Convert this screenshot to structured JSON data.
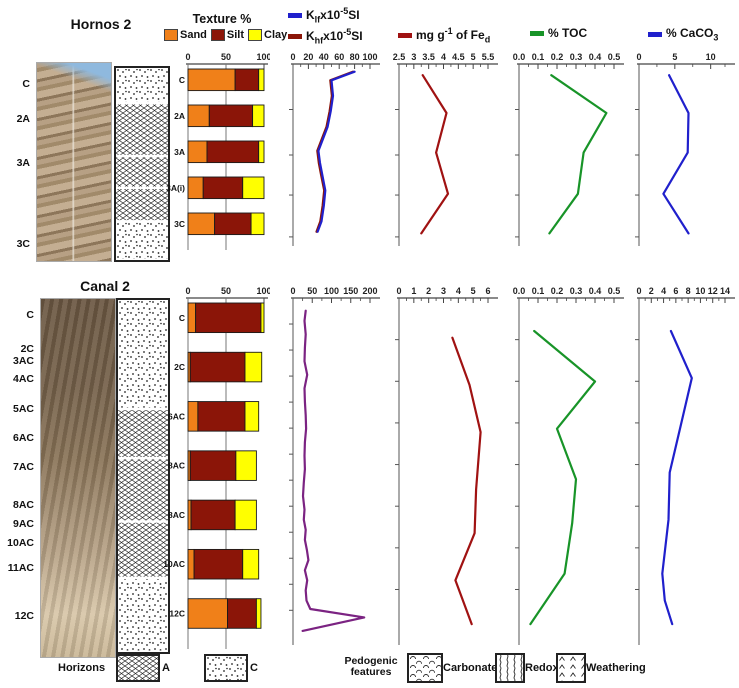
{
  "profiles": [
    {
      "title": "Hornos 2",
      "photo_labels": [
        {
          "label": "C",
          "f": 0.09
        },
        {
          "label": "2A",
          "f": 0.27
        },
        {
          "label": "3A",
          "f": 0.49
        },
        {
          "label": "3C",
          "f": 0.9
        }
      ],
      "pattern_labels": [
        {
          "label": "C",
          "f": 0.07
        },
        {
          "label": "2A",
          "f": 0.26
        },
        {
          "label": "3A",
          "f": 0.48
        },
        {
          "label": "3A(i)",
          "f": 0.67
        },
        {
          "label": "3C",
          "f": 0.91
        }
      ],
      "pattern_segments": [
        {
          "type": "dots",
          "h": 0.185
        },
        {
          "type": "cross",
          "h": 0.275
        },
        {
          "type": "cross",
          "h": 0.165
        },
        {
          "type": "cross",
          "h": 0.175
        },
        {
          "type": "dots",
          "h": 0.2
        }
      ]
    },
    {
      "title": "Canal 2",
      "photo_labels": [
        {
          "label": "C",
          "f": 0.037
        },
        {
          "label": "2C",
          "f": 0.132
        },
        {
          "label": "3AC",
          "f": 0.166
        },
        {
          "label": "4AC",
          "f": 0.216
        },
        {
          "label": "5AC",
          "f": 0.3
        },
        {
          "label": "6AC",
          "f": 0.38
        },
        {
          "label": "7AC",
          "f": 0.46
        },
        {
          "label": "8AC",
          "f": 0.567
        },
        {
          "label": "9AC",
          "f": 0.62
        },
        {
          "label": "10AC",
          "f": 0.674
        },
        {
          "label": "11AC",
          "f": 0.744
        },
        {
          "label": "12C",
          "f": 0.876
        }
      ],
      "pattern_labels": [
        {
          "label": "C",
          "f": 0.05
        },
        {
          "label": "2C",
          "f": 0.19
        },
        {
          "label": "6AC",
          "f": 0.36
        },
        {
          "label": "8AC",
          "f": 0.51
        },
        {
          "label": "8AC",
          "f": 0.68
        },
        {
          "label": "10AC",
          "f": 0.82
        },
        {
          "label": "12C",
          "f": 0.97
        }
      ],
      "pattern_segments": [
        {
          "type": "dots",
          "h": 0.31
        },
        {
          "type": "cross",
          "h": 0.14
        },
        {
          "type": "cross",
          "h": 0.18
        },
        {
          "type": "cross",
          "h": 0.16
        },
        {
          "type": "dots",
          "h": 0.21
        }
      ]
    }
  ],
  "headers": {
    "texture_title": "Texture %",
    "texture_legend": [
      {
        "label": "Sand",
        "color": "#F08019"
      },
      {
        "label": "Silt",
        "color": "#8B1508"
      },
      {
        "label": "Clay",
        "color": "#FFFF00"
      }
    ],
    "klf": {
      "pre": "K",
      "sub": "lf",
      "mid": "x10",
      "sup": "-5",
      "post": "SI",
      "color": "#2020CC"
    },
    "khf": {
      "pre": "K",
      "sub": "hf",
      "mid": "x10",
      "sup": "-5",
      "post": "SI",
      "color": "#8B1508"
    },
    "fe": {
      "pre": "mg g",
      "sup": "-1",
      "mid": " of Fe",
      "sub": "d",
      "color": "#A01212"
    },
    "toc": {
      "label": "% TOC",
      "color": "#189428"
    },
    "caco3": {
      "pre": "% CaCO",
      "sub": "3",
      "color": "#2020CC"
    }
  },
  "footer": {
    "horizons_label": "Horizons",
    "horizon_items": [
      {
        "label": "A",
        "pattern": "cross"
      },
      {
        "label": "C",
        "pattern": "dots"
      }
    ],
    "pedogenic_label_1": "Pedogenic",
    "pedogenic_label_2": "features",
    "pedogenic_items": [
      {
        "label": "Carbonates",
        "pattern": "carbonates"
      },
      {
        "label": "Redox",
        "pattern": "redox"
      },
      {
        "label": "Weathering",
        "pattern": "weathering"
      }
    ]
  },
  "chart_data": [
    {
      "id": "hornos-texture",
      "type": "bar",
      "title": "Hornos 2 Texture %",
      "xlim": [
        0,
        100
      ],
      "xticks": [
        0,
        50,
        100
      ],
      "categories": [
        "C",
        "2A",
        "3A",
        "3A(i)",
        "3C"
      ],
      "series": [
        {
          "name": "Sand",
          "color": "#F08019",
          "values": [
            62,
            28,
            25,
            20,
            35
          ]
        },
        {
          "name": "Silt",
          "color": "#8B1508",
          "values": [
            31,
            57,
            68,
            52,
            48
          ]
        },
        {
          "name": "Clay",
          "color": "#FFFF00",
          "values": [
            7,
            15,
            7,
            28,
            17
          ]
        }
      ]
    },
    {
      "id": "hornos-k",
      "type": "line",
      "title": "Hornos 2 magnetic susceptibility x10-5 SI",
      "xlim": [
        0,
        100
      ],
      "xticks": [
        0,
        20,
        40,
        60,
        80,
        100
      ],
      "minor_ticks": [
        10,
        30,
        50,
        70,
        90
      ],
      "depth_ticks": [
        0.25,
        0.5,
        0.72,
        0.95
      ],
      "series": [
        {
          "name": "Khf x10-5 SI",
          "color": "#8B1508",
          "d": [
            0.01,
            0.06,
            0.15,
            0.24,
            0.33,
            0.4,
            0.47,
            0.54,
            0.61,
            0.7,
            0.79,
            0.88,
            0.94
          ],
          "v": [
            78,
            48.5,
            50.5,
            47.5,
            43.5,
            37.5,
            31.5,
            33.5,
            36.5,
            40.5,
            38.5,
            35.5,
            30.5
          ]
        },
        {
          "name": "Klf x10-5 SI",
          "color": "#2020CC",
          "d": [
            0.01,
            0.06,
            0.15,
            0.24,
            0.33,
            0.4,
            0.47,
            0.54,
            0.61,
            0.7,
            0.79,
            0.88,
            0.94
          ],
          "v": [
            80,
            50,
            52,
            49,
            45,
            39,
            33,
            35,
            38,
            42,
            40,
            37,
            32
          ]
        }
      ]
    },
    {
      "id": "hornos-fe",
      "type": "line",
      "title": "Hornos 2 mg g-1 of Fed",
      "xlim": [
        2.5,
        5.5
      ],
      "xticks": [
        2.5,
        3,
        3.5,
        4,
        4.5,
        5,
        5.5
      ],
      "xtick_labels": [
        "2.5",
        "3",
        "3.5",
        "4",
        "4.5",
        "5",
        "5.5"
      ],
      "minor_ticks": [
        2.75,
        3.25,
        3.75,
        4.25,
        4.75,
        5.25
      ],
      "depth_ticks": [
        0.25,
        0.5,
        0.72,
        0.95
      ],
      "series": [
        {
          "name": "Fed",
          "color": "#A01212",
          "d": [
            0.03,
            0.25,
            0.48,
            0.72,
            0.95
          ],
          "v": [
            3.3,
            4.1,
            3.75,
            4.15,
            3.25
          ]
        }
      ]
    },
    {
      "id": "hornos-toc",
      "type": "line",
      "title": "Hornos 2 % TOC",
      "xlim": [
        0,
        0.5
      ],
      "xticks": [
        0,
        0.1,
        0.2,
        0.3,
        0.4,
        0.5
      ],
      "xtick_labels": [
        "0.0",
        "0.1",
        "0.2",
        "0.3",
        "0.4",
        "0.5"
      ],
      "minor_ticks": [
        0.05,
        0.15,
        0.25,
        0.35,
        0.45
      ],
      "depth_ticks": [
        0.25,
        0.5,
        0.72,
        0.95
      ],
      "series": [
        {
          "name": "% TOC",
          "color": "#189428",
          "d": [
            0.03,
            0.25,
            0.48,
            0.72,
            0.95
          ],
          "v": [
            0.17,
            0.46,
            0.34,
            0.31,
            0.16
          ]
        }
      ]
    },
    {
      "id": "hornos-caco3",
      "type": "line",
      "title": "Hornos 2 % CaCO3",
      "xlim": [
        0,
        12
      ],
      "xticks": [
        0,
        5,
        10
      ],
      "xtick_labels": [
        "0",
        "5",
        "10"
      ],
      "minor_ticks": [
        2.5,
        7.5,
        12
      ],
      "depth_ticks": [
        0.25,
        0.5,
        0.72,
        0.95
      ],
      "series": [
        {
          "name": "% CaCO3",
          "color": "#2020CC",
          "d": [
            0.03,
            0.25,
            0.48,
            0.72,
            0.95
          ],
          "v": [
            4.2,
            6.9,
            6.8,
            3.4,
            6.9
          ]
        }
      ]
    },
    {
      "id": "canal-texture",
      "type": "bar",
      "title": "Canal 2 Texture %",
      "xlim": [
        0,
        100
      ],
      "xticks": [
        0,
        50,
        100
      ],
      "categories": [
        "C",
        "2C",
        "6AC",
        "8AC",
        "8AC",
        "10AC",
        "12C"
      ],
      "series": [
        {
          "name": "Sand",
          "color": "#F08019",
          "values": [
            10,
            3,
            13,
            3,
            4,
            8,
            52
          ]
        },
        {
          "name": "Silt",
          "color": "#8B1508",
          "values": [
            86,
            72,
            62,
            60,
            58,
            64,
            38
          ]
        },
        {
          "name": "Clay",
          "color": "#FFFF00",
          "values": [
            4,
            22,
            18,
            27,
            28,
            21,
            6
          ]
        }
      ]
    },
    {
      "id": "canal-k",
      "type": "line",
      "title": "Canal 2 magnetic susceptibility x10-5 SI",
      "xlim": [
        0,
        200
      ],
      "xticks": [
        0,
        50,
        100,
        150,
        200
      ],
      "minor_ticks": [
        25,
        75,
        125,
        175
      ],
      "depth_ticks": [
        0.075,
        0.15,
        0.225,
        0.3,
        0.375,
        0.45,
        0.525,
        0.6,
        0.675,
        0.75,
        0.825,
        0.9
      ],
      "series": [
        {
          "name": "Klf/Khf x10-5 SI",
          "color": "#7B2382",
          "d": [
            0.02,
            0.05,
            0.09,
            0.13,
            0.17,
            0.21,
            0.25,
            0.29,
            0.33,
            0.37,
            0.41,
            0.45,
            0.49,
            0.53,
            0.57,
            0.61,
            0.64,
            0.67,
            0.7,
            0.73,
            0.76,
            0.79,
            0.82,
            0.85,
            0.88,
            0.905,
            0.93,
            0.97
          ],
          "v": [
            33,
            30,
            33,
            31,
            30,
            37,
            30,
            31,
            33,
            34,
            31,
            30,
            31,
            28,
            26,
            30,
            28,
            33,
            31,
            36,
            40,
            31,
            37,
            33,
            35,
            45,
            185,
            25
          ]
        }
      ]
    },
    {
      "id": "canal-fe",
      "type": "line",
      "title": "Canal 2 mg g-1 of Fed",
      "xlim": [
        0,
        6
      ],
      "xticks": [
        0,
        1,
        2,
        3,
        4,
        5,
        6
      ],
      "minor_ticks": [
        0.5,
        1.5,
        2.5,
        3.5,
        4.5,
        5.5
      ],
      "depth_ticks": [
        0.12,
        0.24,
        0.36,
        0.48,
        0.6,
        0.72,
        0.84
      ],
      "series": [
        {
          "name": "Fed",
          "color": "#A01212",
          "d": [
            0.1,
            0.24,
            0.38,
            0.55,
            0.68,
            0.82,
            0.95
          ],
          "v": [
            3.6,
            4.75,
            5.5,
            5.2,
            5.1,
            3.8,
            4.9
          ]
        }
      ]
    },
    {
      "id": "canal-toc",
      "type": "line",
      "title": "Canal 2 % TOC",
      "xlim": [
        0,
        0.5
      ],
      "xticks": [
        0,
        0.1,
        0.2,
        0.3,
        0.4,
        0.5
      ],
      "xtick_labels": [
        "0.0",
        "0.1",
        "0.2",
        "0.3",
        "0.4",
        "0.5"
      ],
      "minor_ticks": [
        0.05,
        0.15,
        0.25,
        0.35,
        0.45
      ],
      "depth_ticks": [
        0.12,
        0.24,
        0.36,
        0.48,
        0.6,
        0.72,
        0.84
      ],
      "series": [
        {
          "name": "% TOC",
          "color": "#189428",
          "d": [
            0.08,
            0.23,
            0.37,
            0.52,
            0.65,
            0.8,
            0.95
          ],
          "v": [
            0.08,
            0.4,
            0.2,
            0.3,
            0.28,
            0.24,
            0.06
          ]
        }
      ]
    },
    {
      "id": "canal-caco3",
      "type": "line",
      "title": "Canal 2 % CaCO3",
      "xlim": [
        0,
        14
      ],
      "xticks": [
        0,
        2,
        4,
        6,
        8,
        10,
        12,
        14
      ],
      "minor_ticks": [
        1,
        3,
        5,
        7,
        9,
        11,
        13
      ],
      "depth_ticks": [
        0.12,
        0.24,
        0.36,
        0.48,
        0.6,
        0.72,
        0.84
      ],
      "series": [
        {
          "name": "% CaCO3",
          "color": "#2020CC",
          "d": [
            0.08,
            0.22,
            0.36,
            0.5,
            0.64,
            0.8,
            0.88,
            0.95
          ],
          "v": [
            5.2,
            8.6,
            6.8,
            5.0,
            4.8,
            3.8,
            4.2,
            5.4
          ]
        }
      ]
    }
  ]
}
